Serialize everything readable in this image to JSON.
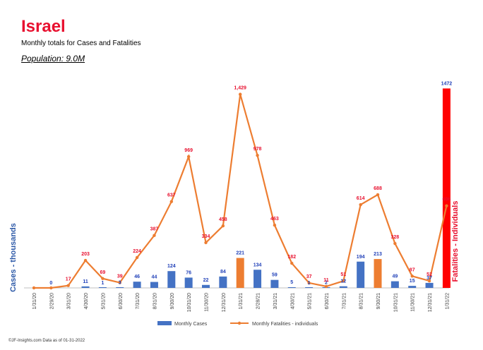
{
  "header": {
    "title": "Israel",
    "subtitle": "Monthly totals for Cases and Fatalities",
    "population": "Population: 9.0M"
  },
  "footer": {
    "text": "©JF-Insights.com  Data as of 01-31-2022"
  },
  "colors": {
    "cases": "#4472c4",
    "cases_peak": "#ed7d31",
    "cases_current": "#ff0000",
    "fatalities": "#ed7d31",
    "case_labels": "#1f3fb8",
    "fatality_labels": "#e8102f",
    "left_axis_title": "#2e5aa8",
    "right_axis_title": "#e8102f"
  },
  "chart_data": {
    "type": "bar+line",
    "categories": [
      "1/31/20",
      "2/29/20",
      "3/31/20",
      "4/30/20",
      "5/31/20",
      "6/30/20",
      "7/31/20",
      "8/31/20",
      "9/30/20",
      "10/31/20",
      "11/30/20",
      "12/31/20",
      "1/31/21",
      "2/28/21",
      "3/31/21",
      "4/30/21",
      "5/31/21",
      "6/30/21",
      "7/31/21",
      "8/31/21",
      "9/30/21",
      "10/31/21",
      "11/30/21",
      "12/31/21",
      "1/31/22"
    ],
    "series": [
      {
        "name": "Monthly Cases",
        "axis": "left",
        "values": [
          0,
          0,
          0,
          11,
          1,
          3,
          46,
          44,
          124,
          76,
          22,
          84,
          221,
          134,
          59,
          5,
          1,
          2,
          12,
          194,
          213,
          49,
          15,
          37,
          1472
        ],
        "labels": [
          "",
          "0",
          "",
          "11",
          "1",
          "3",
          "46",
          "44",
          "124",
          "76",
          "22",
          "84",
          "221",
          "134",
          "59",
          "5",
          "1",
          "2",
          "12",
          "194",
          "213",
          "49",
          "15",
          "37",
          "1472"
        ],
        "highlight": {
          "12": "peak",
          "20": "peak",
          "24": "current"
        }
      },
      {
        "name": "Monthly Fatalities - individuals",
        "axis": "right",
        "values": [
          0,
          0,
          17,
          203,
          69,
          39,
          224,
          387,
          637,
          969,
          334,
          458,
          1429,
          978,
          463,
          182,
          37,
          11,
          51,
          614,
          688,
          328,
          87,
          52,
          606
        ],
        "labels": [
          "",
          "",
          "17",
          "203",
          "69",
          "39",
          "224",
          "387",
          "637",
          "969",
          "334",
          "458",
          "1,429",
          "978",
          "463",
          "182",
          "37",
          "11",
          "51",
          "614",
          "688",
          "328",
          "87",
          "52",
          "606"
        ]
      }
    ],
    "ylabel_left": "Cases - thousands",
    "ylabel_right": "Fatalities - Individuals",
    "ylim_left": [
      0,
      1500
    ],
    "ylim_right": [
      0,
      1500
    ],
    "grid": false,
    "legend_position": "bottom"
  }
}
